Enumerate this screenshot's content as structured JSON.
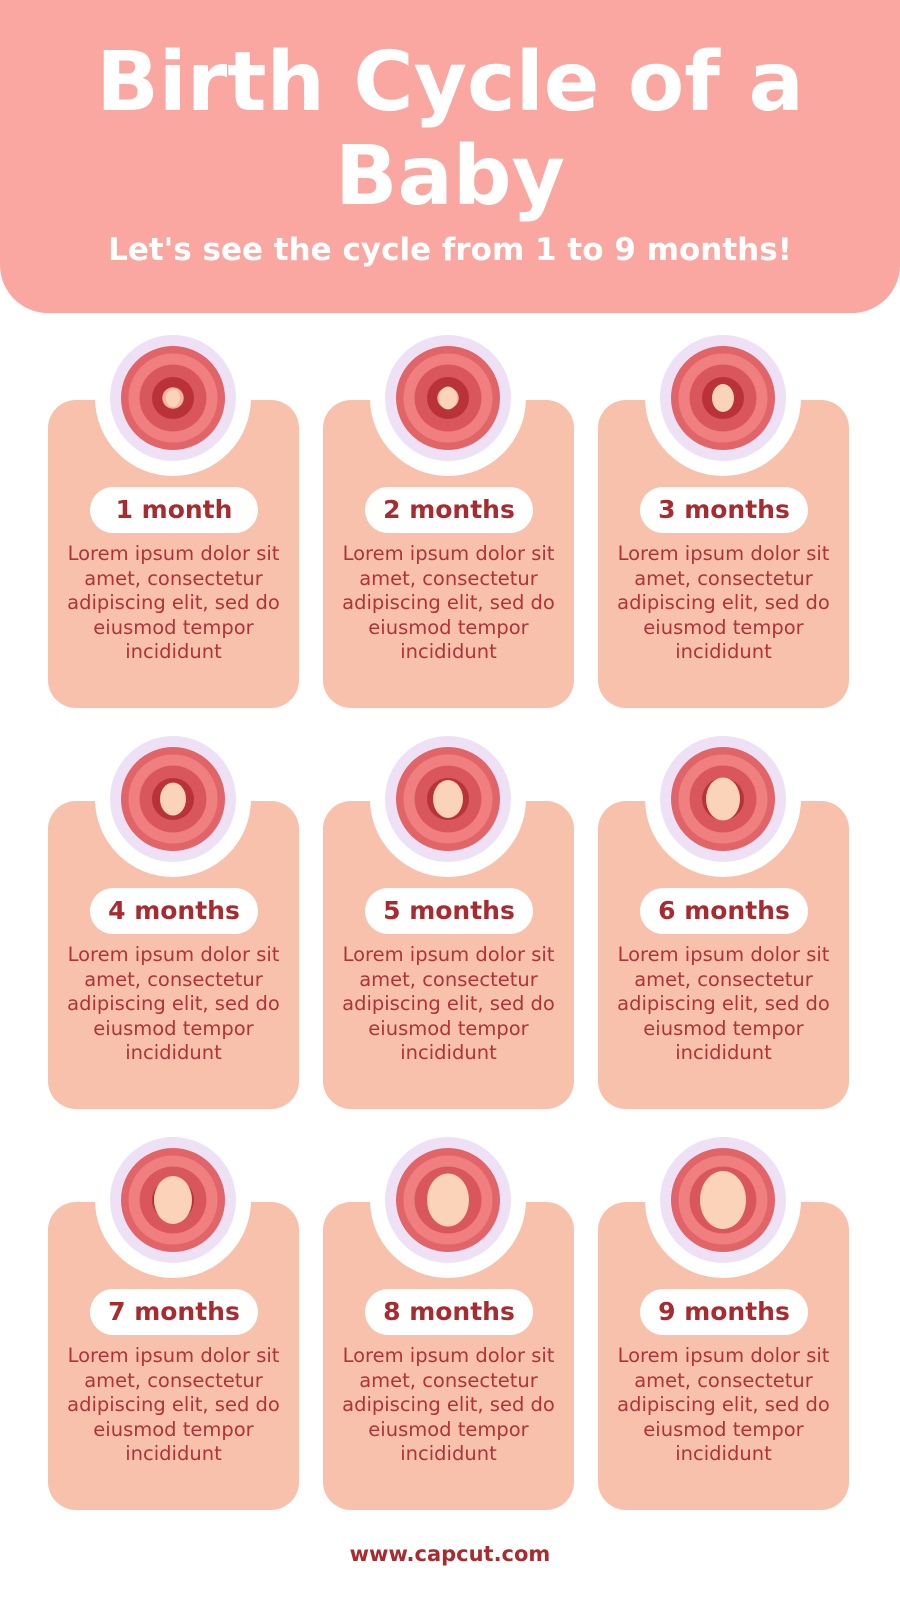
{
  "header": {
    "title": "Birth Cycle of a Baby",
    "subtitle": "Let's see the cycle from 1 to 9 months!"
  },
  "colors": {
    "header": "#F9A7A0",
    "card": "#F8C1AB",
    "text": "#A82B30",
    "halo": "#EFE1F5"
  },
  "stages": [
    {
      "label": "1 month",
      "text": "Lorem ipsum dolor sit amet, consectetur adipiscing elit, sed do eiusmod tempor incididunt",
      "icon": "embryo-1-month-icon"
    },
    {
      "label": "2 months",
      "text": "Lorem ipsum dolor sit amet, consectetur adipiscing elit, sed do eiusmod tempor incididunt",
      "icon": "fetus-2-months-icon"
    },
    {
      "label": "3 months",
      "text": "Lorem ipsum dolor sit amet, consectetur adipiscing elit, sed do eiusmod tempor incididunt",
      "icon": "fetus-3-months-icon"
    },
    {
      "label": "4 months",
      "text": "Lorem ipsum dolor sit amet, consectetur adipiscing elit, sed do eiusmod tempor incididunt",
      "icon": "fetus-4-months-icon"
    },
    {
      "label": "5 months",
      "text": "Lorem ipsum dolor sit amet, consectetur adipiscing elit, sed do eiusmod tempor incididunt",
      "icon": "fetus-5-months-icon"
    },
    {
      "label": "6 months",
      "text": "Lorem ipsum dolor sit amet, consectetur adipiscing elit, sed do eiusmod tempor incididunt",
      "icon": "fetus-6-months-icon"
    },
    {
      "label": "7 months",
      "text": "Lorem ipsum dolor sit amet, consectetur adipiscing elit, sed do eiusmod tempor incididunt",
      "icon": "fetus-7-months-icon"
    },
    {
      "label": "8 months",
      "text": "Lorem ipsum dolor sit amet, consectetur adipiscing elit, sed do eiusmod tempor incididunt",
      "icon": "fetus-8-months-icon"
    },
    {
      "label": "9 months",
      "text": "Lorem ipsum dolor sit amet, consectetur adipiscing elit, sed do eiusmod tempor incididunt",
      "icon": "fetus-9-months-icon"
    }
  ],
  "footer": {
    "url": "www.capcut.com"
  }
}
